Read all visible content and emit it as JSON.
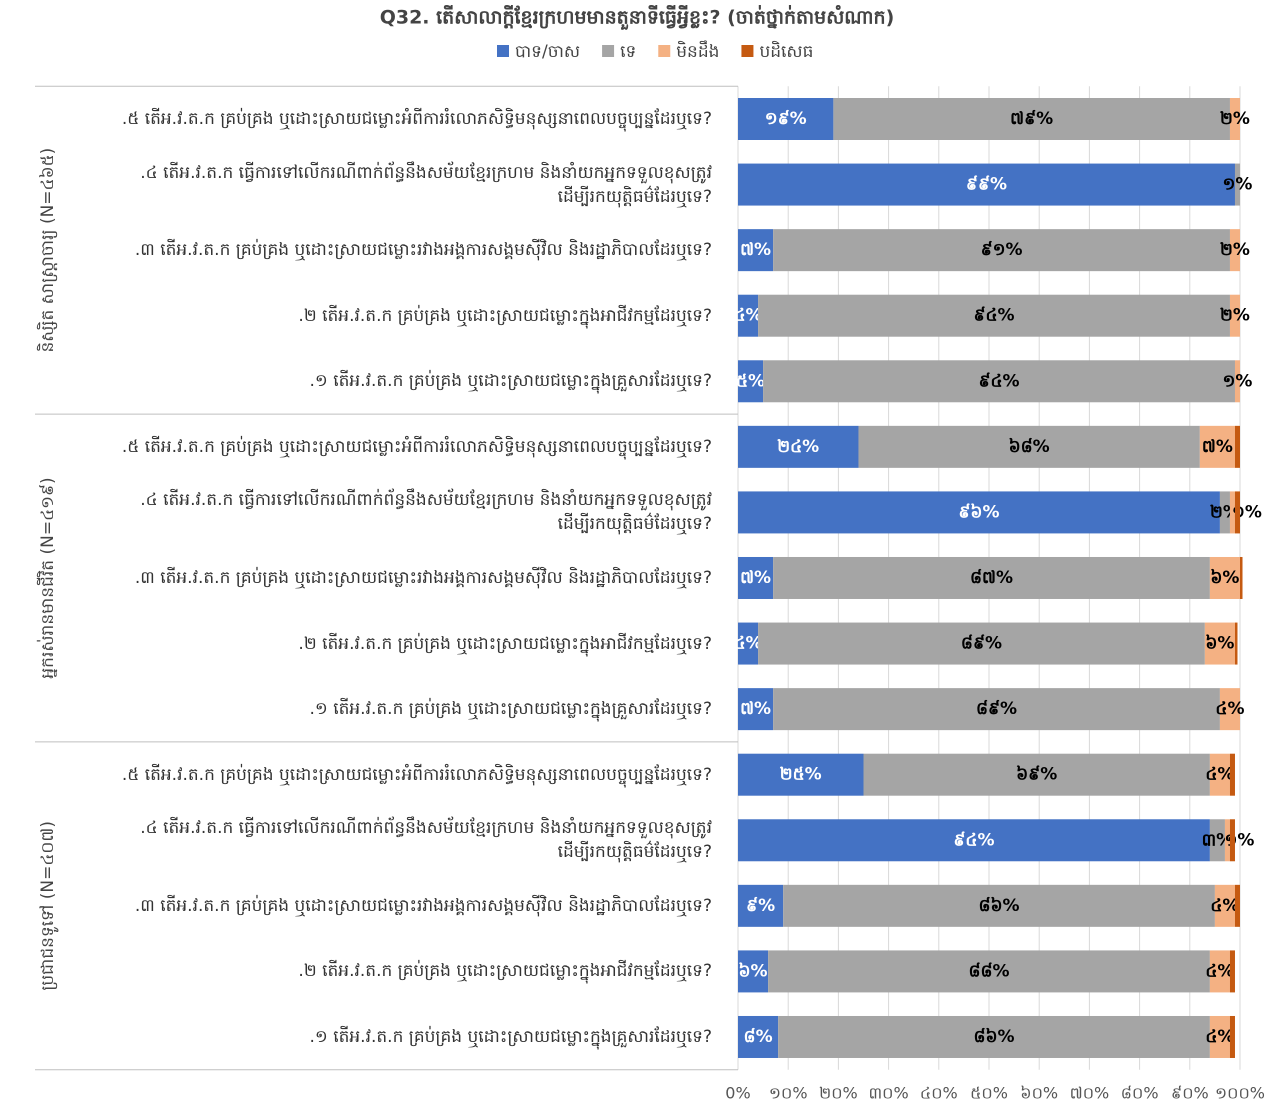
{
  "chart_data": {
    "type": "stacked-bar-horizontal",
    "title": "Q32. តើសាលាក្តីខ្មែរក្រហមមានតួនាទីធ្វើអ្វីខ្លះ? (ចាត់ថ្នាក់តាមសំណាក)",
    "groups": [
      "និស្សិត សាស្ត្រាចារ្យ (N=៤៦៥)",
      "អ្នករស់រានមានជីវិត (N=៤១៩)",
      "ប្រជាជនទូទៅ (N=៤០៧)"
    ],
    "categories": [
      ".៥ តើអ.វ.ត.ក គ្រប់គ្រង ឬដោះស្រាយជម្លោះអំពីការរំលោភសិទ្ធិមនុស្សនាពេលបច្ចុប្បន្នដែរឬទេ?",
      ".៤ តើអ.វ.ត.ក ធ្វើការទៅលើករណីពាក់ព័ន្ធនឹងសម័យខ្មែរក្រហម និងនាំយកអ្នកទទួលខុសត្រូវ ដើម្បីរកយុត្តិធម៌ដែរឬទេ?",
      ".៣ តើអ.វ.ត.ក គ្រប់គ្រង ឬដោះស្រាយជម្លោះរវាងអង្គការសង្គមស៊ីវិល និងរដ្ឋាភិបាលដែរឬទេ?",
      ".២ តើអ.វ.ត.ក គ្រប់គ្រង ឬដោះស្រាយជម្លោះក្នុងអាជីវកម្មដែរឬទេ?",
      ".១ តើអ.វ.ត.ក គ្រប់គ្រង ឬដោះស្រាយជម្លោះក្នុងគ្រួសារដែរឬទេ?",
      ".៥ តើអ.វ.ត.ក គ្រប់គ្រង ឬដោះស្រាយជម្លោះអំពីការរំលោភសិទ្ធិមនុស្សនាពេលបច្ចុប្បន្នដែរឬទេ?",
      ".៤ តើអ.វ.ត.ក ធ្វើការទៅលើករណីពាក់ព័ន្ធនឹងសម័យខ្មែរក្រហម និងនាំយកអ្នកទទួលខុសត្រូវ ដើម្បីរកយុត្តិធម៌ដែរឬទេ?",
      ".៣ តើអ.វ.ត.ក គ្រប់គ្រង ឬដោះស្រាយជម្លោះរវាងអង្គការសង្គមស៊ីវិល និងរដ្ឋាភិបាលដែរឬទេ?",
      ".២ តើអ.វ.ត.ក គ្រប់គ្រង ឬដោះស្រាយជម្លោះក្នុងអាជីវកម្មដែរឬទេ?",
      ".១ តើអ.វ.ត.ក គ្រប់គ្រង ឬដោះស្រាយជម្លោះក្នុងគ្រួសារដែរឬទេ?",
      ".៥ តើអ.វ.ត.ក គ្រប់គ្រង ឬដោះស្រាយជម្លោះអំពីការរំលោភសិទ្ធិមនុស្សនាពេលបច្ចុប្បន្នដែរឬទេ?",
      ".៤ តើអ.វ.ត.ក ធ្វើការទៅលើករណីពាក់ព័ន្ធនឹងសម័យខ្មែរក្រហម និងនាំយកអ្នកទទួលខុសត្រូវ ដើម្បីរកយុត្តិធម៌ដែរឬទេ?",
      ".៣ តើអ.វ.ត.ក គ្រប់គ្រង ឬដោះស្រាយជម្លោះរវាងអង្គការសង្គមស៊ីវិល និងរដ្ឋាភិបាលដែរឬទេ?",
      ".២ តើអ.វ.ត.ក គ្រប់គ្រង ឬដោះស្រាយជម្លោះក្នុងអាជីវកម្មដែរឬទេ?",
      ".១ តើអ.វ.ត.ក គ្រប់គ្រង ឬដោះស្រាយជម្លោះក្នុងគ្រួសារដែរឬទេ?"
    ],
    "series": [
      {
        "name": "បាទ/ចាស",
        "color": "#4472c4",
        "label_color": "#ffffff",
        "values": [
          19,
          99,
          7,
          4,
          5,
          24,
          96,
          7,
          4,
          7,
          25,
          94,
          9,
          6,
          8
        ],
        "value_labels": [
          "១៩%",
          "៩៩%",
          "៧%",
          "៤%",
          "៥%",
          "២៤%",
          "៩៦%",
          "៧%",
          "៤%",
          "៧%",
          "២៥%",
          "៩៤%",
          "៩%",
          "៦%",
          "៨%"
        ]
      },
      {
        "name": "ទេ",
        "color": "#a5a5a5",
        "label_color": "#000000",
        "values": [
          79,
          1,
          91,
          94,
          94,
          68,
          2,
          87,
          89,
          89,
          69,
          3,
          86,
          88,
          86
        ],
        "value_labels": [
          "៧៩%",
          "១%",
          "៩១%",
          "៩៤%",
          "៩៤%",
          "៦៨%",
          "២%",
          "៨៧%",
          "៨៩%",
          "៨៩%",
          "៦៩%",
          "៣%",
          "៨៦%",
          "៨៨%",
          "៨៦%"
        ]
      },
      {
        "name": "មិនដឹង",
        "color": "#f4b183",
        "label_color": "#000000",
        "values": [
          2,
          0,
          2,
          2,
          1,
          7,
          1,
          6,
          6,
          4,
          4,
          1,
          4,
          4,
          4
        ],
        "value_labels": [
          "២%",
          null,
          "២%",
          "២%",
          "១%",
          "៧%",
          "១%",
          "៦%",
          "៦%",
          "៤%",
          "៤%",
          "១%",
          "៤%",
          "៤%",
          "៤%"
        ]
      },
      {
        "name": "បដិសេធ",
        "color": "#c55a11",
        "label_color": "#000000",
        "values": [
          0,
          0,
          0,
          0,
          0,
          1,
          1,
          0.5,
          0.5,
          0,
          1,
          1,
          1,
          1,
          1
        ],
        "value_labels": [
          null,
          null,
          null,
          null,
          null,
          null,
          null,
          null,
          null,
          null,
          null,
          null,
          null,
          null,
          null
        ]
      }
    ],
    "xlim": [
      0,
      100
    ],
    "xticks": [
      {
        "value": 0,
        "label": "0%"
      },
      {
        "value": 10,
        "label": "១០%"
      },
      {
        "value": 20,
        "label": "២០%"
      },
      {
        "value": 30,
        "label": "៣០%"
      },
      {
        "value": 40,
        "label": "៤០%"
      },
      {
        "value": 50,
        "label": "៥០%"
      },
      {
        "value": 60,
        "label": "៦០%"
      },
      {
        "value": 70,
        "label": "៧០%"
      },
      {
        "value": 80,
        "label": "៨០%"
      },
      {
        "value": 90,
        "label": "៩០%"
      },
      {
        "value": 100,
        "label": "១០០%"
      }
    ],
    "grid": true
  }
}
